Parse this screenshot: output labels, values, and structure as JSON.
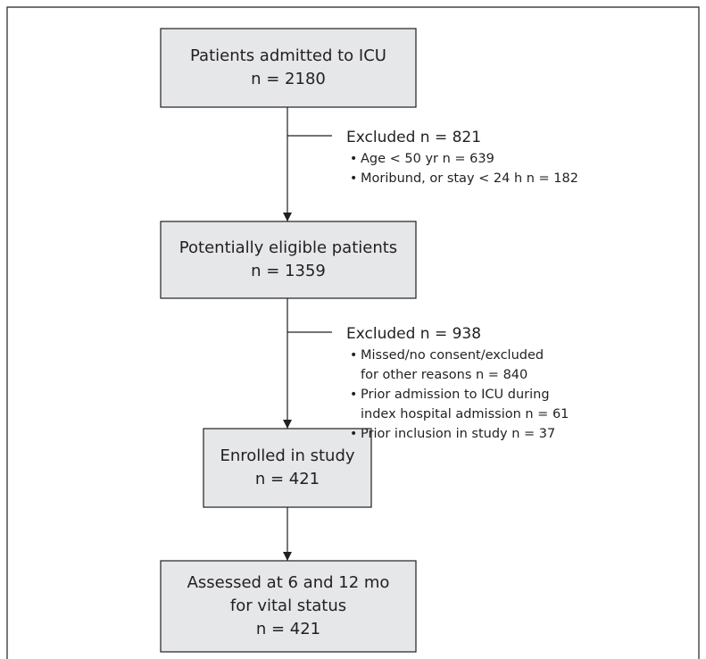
{
  "nodes": [
    {
      "lines": [
        "Patients admitted to ICU",
        "n = 2180"
      ]
    },
    {
      "lines": [
        "Potentially eligible patients",
        "n = 1359"
      ]
    },
    {
      "lines": [
        "Enrolled in study",
        "n = 421"
      ]
    },
    {
      "lines": [
        "Assessed at 6 and 12 mo",
        "for vital status",
        "n = 421"
      ]
    }
  ],
  "exclusions": [
    {
      "heading": "Excluded  n = 821",
      "items": [
        [
          "Age < 50 yr  n = 639"
        ],
        [
          "Moribund, or stay < 24 h  n = 182"
        ]
      ]
    },
    {
      "heading": "Excluded  n = 938",
      "items": [
        [
          "Missed/no consent/excluded",
          "for other reasons  n = 840"
        ],
        [
          "Prior admission to ICU during",
          "index hospital admission  n = 61"
        ],
        [
          "Prior inclusion in study  n = 37"
        ]
      ]
    }
  ]
}
